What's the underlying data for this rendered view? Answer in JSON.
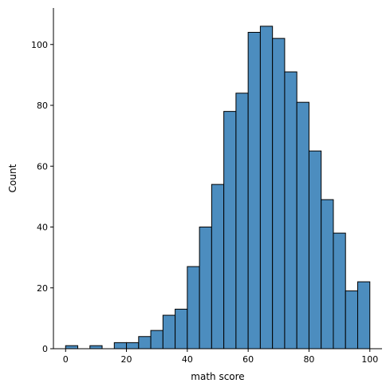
{
  "chart_data": {
    "type": "bar",
    "title": "",
    "xlabel": "math score",
    "ylabel": "Count",
    "xlim": [
      -4,
      104
    ],
    "ylim": [
      0,
      112
    ],
    "x_ticks": [
      0,
      20,
      40,
      60,
      80,
      100
    ],
    "y_ticks": [
      0,
      20,
      40,
      60,
      80,
      100
    ],
    "bar_color": "#4C8DBF",
    "edge_color": "#000000",
    "grid": false,
    "bins": [
      {
        "x0": 0,
        "x1": 4,
        "count": 1
      },
      {
        "x0": 4,
        "x1": 8,
        "count": 0
      },
      {
        "x0": 8,
        "x1": 12,
        "count": 1
      },
      {
        "x0": 12,
        "x1": 16,
        "count": 0
      },
      {
        "x0": 16,
        "x1": 20,
        "count": 2
      },
      {
        "x0": 20,
        "x1": 24,
        "count": 2
      },
      {
        "x0": 24,
        "x1": 28,
        "count": 4
      },
      {
        "x0": 28,
        "x1": 32,
        "count": 6
      },
      {
        "x0": 32,
        "x1": 36,
        "count": 11
      },
      {
        "x0": 36,
        "x1": 40,
        "count": 13
      },
      {
        "x0": 40,
        "x1": 44,
        "count": 27
      },
      {
        "x0": 44,
        "x1": 48,
        "count": 40
      },
      {
        "x0": 48,
        "x1": 52,
        "count": 54
      },
      {
        "x0": 52,
        "x1": 56,
        "count": 78
      },
      {
        "x0": 56,
        "x1": 60,
        "count": 84
      },
      {
        "x0": 60,
        "x1": 64,
        "count": 104
      },
      {
        "x0": 64,
        "x1": 68,
        "count": 106
      },
      {
        "x0": 68,
        "x1": 72,
        "count": 102
      },
      {
        "x0": 72,
        "x1": 76,
        "count": 91
      },
      {
        "x0": 76,
        "x1": 80,
        "count": 81
      },
      {
        "x0": 80,
        "x1": 84,
        "count": 65
      },
      {
        "x0": 84,
        "x1": 88,
        "count": 49
      },
      {
        "x0": 88,
        "x1": 92,
        "count": 38
      },
      {
        "x0": 92,
        "x1": 96,
        "count": 19
      },
      {
        "x0": 96,
        "x1": 100,
        "count": 22
      }
    ]
  }
}
